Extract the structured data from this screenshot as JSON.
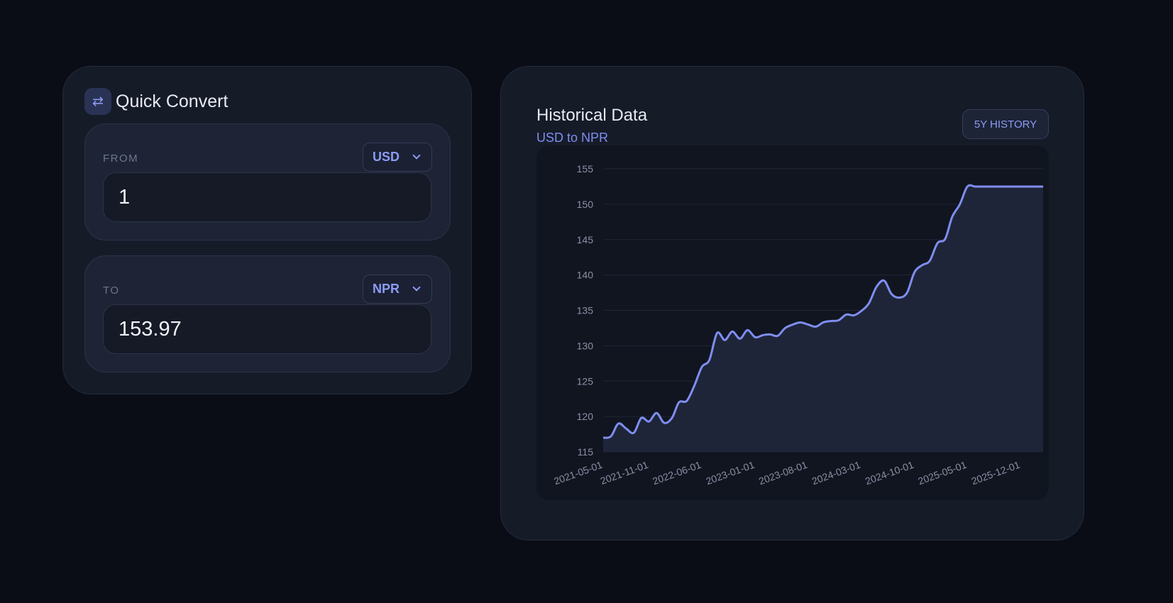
{
  "converter": {
    "title": "Quick Convert",
    "swap_icon": "swap-arrows-icon",
    "from": {
      "label": "FROM",
      "currency": "USD",
      "amount": "1"
    },
    "to": {
      "label": "TO",
      "currency": "NPR",
      "amount": "153.97"
    }
  },
  "chart_panel": {
    "title": "Historical Data",
    "subtitle": "USD to NPR",
    "range_button": "5Y HISTORY"
  },
  "colors": {
    "accent": "#7e8ef0",
    "background": "#0a0d16",
    "card": "#161b28"
  },
  "chart_data": {
    "type": "area",
    "title": "Historical Data",
    "subtitle": "USD to NPR",
    "xlabel": "",
    "ylabel": "",
    "ylim": [
      115,
      155
    ],
    "yticks": [
      115,
      120,
      125,
      130,
      135,
      140,
      145,
      150,
      155
    ],
    "xticks": [
      "2021-05-01",
      "2021-11-01",
      "2022-06-01",
      "2023-01-01",
      "2023-08-01",
      "2024-03-01",
      "2024-10-01",
      "2025-05-01",
      "2025-12-01"
    ],
    "grid": true,
    "legend": "none",
    "series": [
      {
        "x": [
          "2021-05-01",
          "2021-06-01",
          "2021-07-01",
          "2021-08-01",
          "2021-09-01",
          "2021-10-01",
          "2021-11-01",
          "2021-12-01",
          "2022-01-01",
          "2022-02-01",
          "2022-03-01",
          "2022-04-01",
          "2022-05-01",
          "2022-06-01",
          "2022-07-01",
          "2022-08-01",
          "2022-09-01",
          "2022-10-01",
          "2022-11-01",
          "2022-12-01",
          "2023-01-01",
          "2023-02-01",
          "2023-03-01",
          "2023-04-01",
          "2023-05-01",
          "2023-06-01",
          "2023-07-01",
          "2023-08-01",
          "2023-09-01",
          "2023-10-01",
          "2023-11-01",
          "2023-12-01",
          "2024-01-01",
          "2024-02-01",
          "2024-03-01",
          "2024-04-01",
          "2024-05-01",
          "2024-06-01",
          "2024-07-01",
          "2024-08-01",
          "2024-09-01",
          "2024-10-01",
          "2024-11-01",
          "2024-12-01",
          "2025-01-01",
          "2025-02-01",
          "2025-03-01",
          "2025-04-01",
          "2025-05-01",
          "2025-06-01",
          "2025-07-01",
          "2025-08-01",
          "2025-09-01",
          "2025-10-01",
          "2025-11-01",
          "2025-12-01",
          "2026-01-01",
          "2026-02-01",
          "2026-03-01"
        ],
        "values": [
          117.0,
          117.2,
          119.0,
          118.3,
          117.7,
          119.8,
          119.3,
          120.5,
          119.1,
          119.8,
          122.0,
          122.2,
          124.3,
          127.0,
          128.0,
          131.8,
          130.8,
          132.0,
          131.0,
          132.2,
          131.2,
          131.5,
          131.6,
          131.4,
          132.5,
          133.0,
          133.3,
          133.0,
          132.7,
          133.3,
          133.5,
          133.6,
          134.4,
          134.3,
          134.9,
          136.0,
          138.3,
          139.2,
          137.3,
          136.8,
          137.5,
          140.4,
          141.4,
          142.0,
          144.5,
          145.1,
          148.2,
          150.0,
          152.5,
          152.5,
          152.5,
          152.5,
          152.5,
          152.5,
          152.5,
          152.5,
          152.5,
          152.5,
          152.5
        ]
      }
    ]
  }
}
